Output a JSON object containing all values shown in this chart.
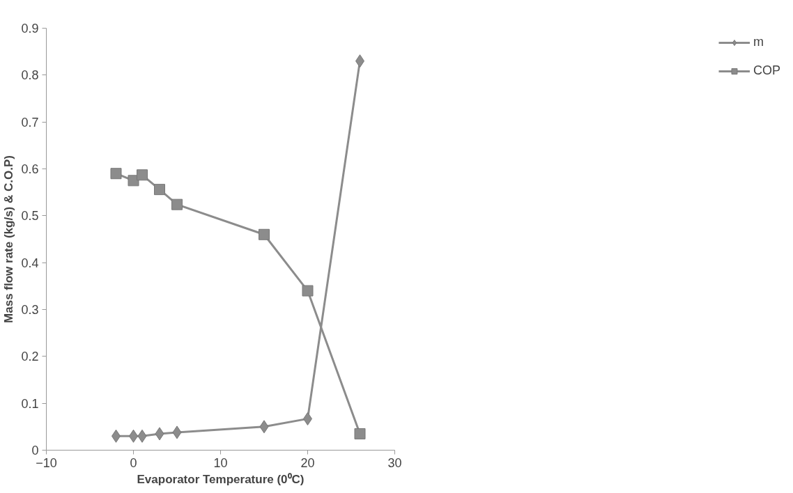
{
  "chart_data": {
    "type": "line",
    "xlabel": "Evaporator Temperature (0⁰C)",
    "ylabel": "Mass flow rate (kg/s) & C.O.P)",
    "x": [
      -2,
      0,
      1,
      3,
      5,
      15,
      20,
      26
    ],
    "series": [
      {
        "name": "m",
        "color": "#8c8c8c",
        "marker": "diamond",
        "values": [
          0.03,
          0.03,
          0.03,
          0.035,
          0.038,
          0.05,
          0.067,
          0.83
        ]
      },
      {
        "name": "COP",
        "color": "#8c8c8c",
        "marker": "square",
        "values": [
          0.59,
          0.575,
          0.587,
          0.556,
          0.524,
          0.46,
          0.34,
          0.035
        ]
      }
    ],
    "xlim": [
      -10,
      30
    ],
    "xticks": [
      -10,
      0,
      10,
      20,
      30
    ],
    "ylim": [
      0,
      0.9
    ],
    "yticks": [
      0,
      0.1,
      0.2,
      0.3,
      0.4,
      0.5,
      0.6,
      0.7,
      0.8,
      0.9
    ],
    "grid": false,
    "legend": "right",
    "line_style": "solid"
  }
}
